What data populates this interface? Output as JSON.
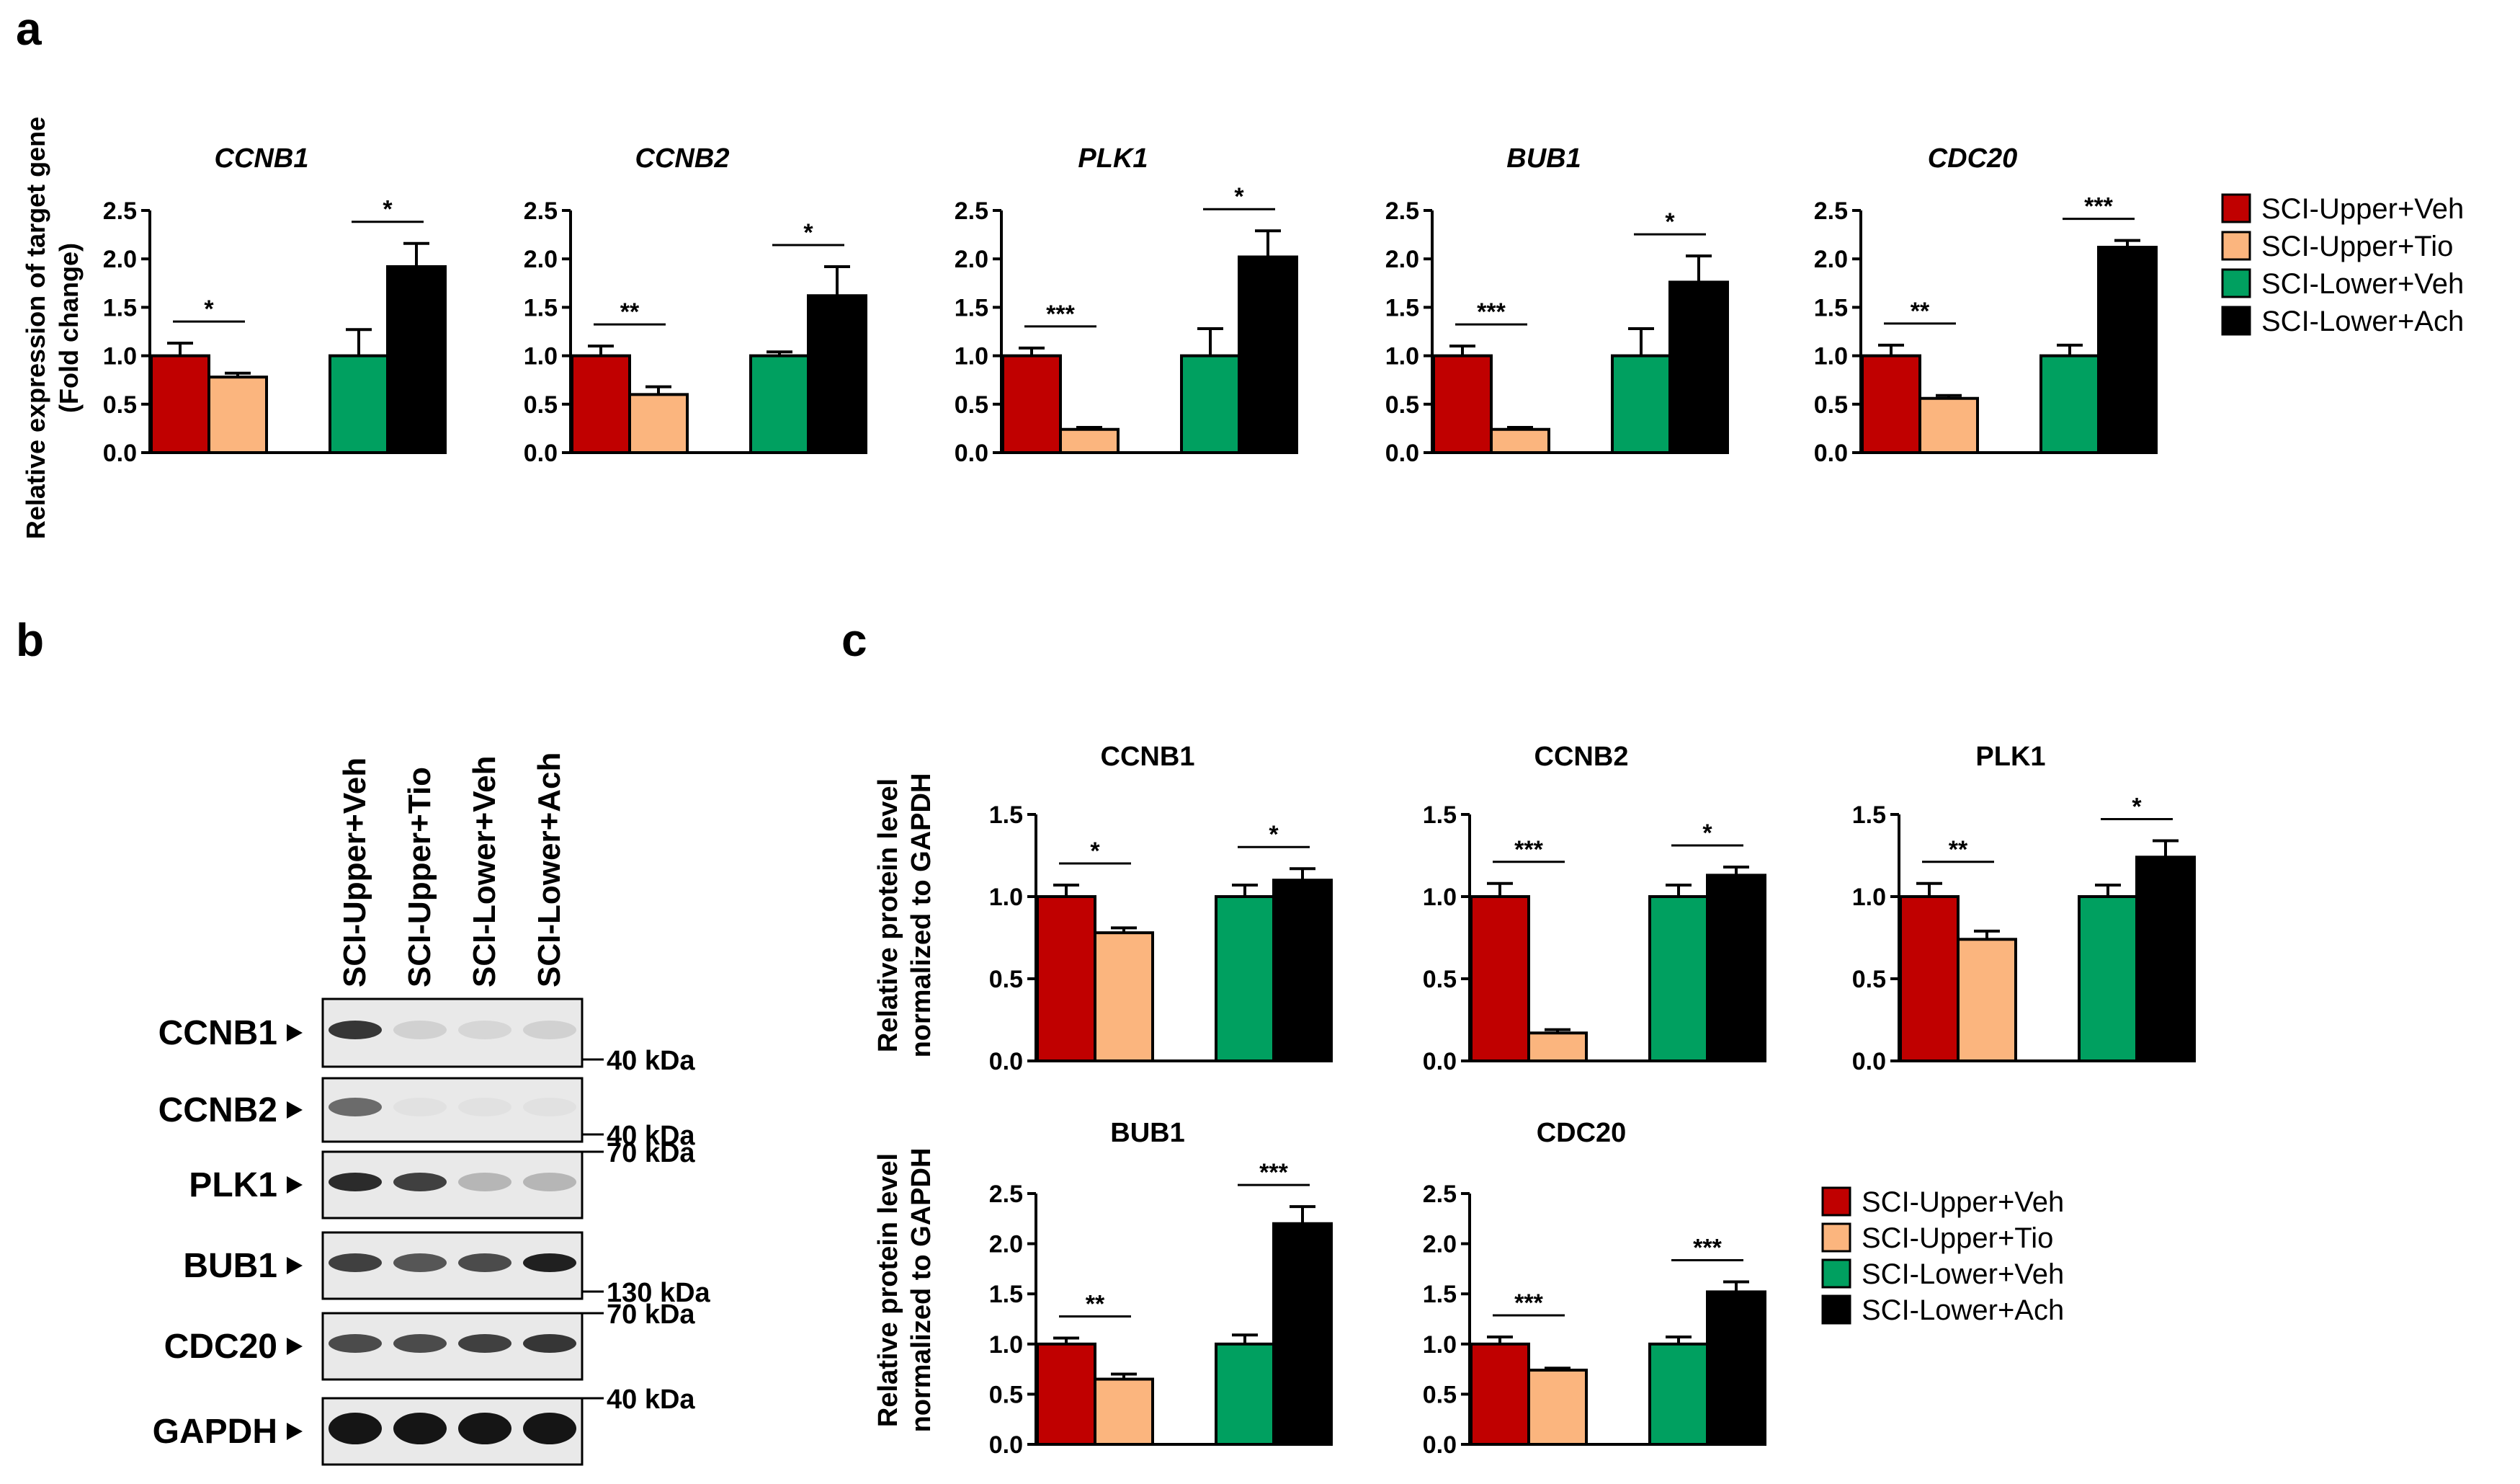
{
  "panel_labels": {
    "a": "a",
    "b": "b",
    "c": "c"
  },
  "colors": {
    "upper_veh": "#c00000",
    "upper_tio": "#fbb57e",
    "lower_veh": "#00a060",
    "lower_ach": "#000000",
    "axis": "#000000"
  },
  "legend": {
    "entries": [
      "SCI-Upper+Veh",
      "SCI-Upper+Tio",
      "SCI-Lower+Veh",
      "SCI-Lower+Ach"
    ]
  },
  "panel_a": {
    "ylabel_line1": "Relative expression of target gene",
    "ylabel_line2": "(Fold change)"
  },
  "panel_c": {
    "ylabel_line1": "Relative protein level",
    "ylabel_line2": "normalized to GAPDH"
  },
  "blot": {
    "lanes": [
      "SCI-Upper+Veh",
      "SCI-Upper+Tio",
      "SCI-Lower+Veh",
      "SCI-Lower+Ach"
    ],
    "rows": [
      {
        "label": "CCNB1",
        "markers": [
          {
            "text": "40 kDa",
            "pos": "bottom"
          }
        ],
        "intensity": [
          0.85,
          0.12,
          0.1,
          0.12
        ]
      },
      {
        "label": "CCNB2",
        "markers": [
          {
            "text": "40 kDa",
            "pos": "bottom"
          }
        ],
        "intensity": [
          0.6,
          0.05,
          0.05,
          0.05
        ]
      },
      {
        "label": "PLK1",
        "markers": [
          {
            "text": "70 kDa",
            "pos": "top"
          }
        ],
        "intensity": [
          0.9,
          0.8,
          0.25,
          0.25
        ]
      },
      {
        "label": "BUB1",
        "markers": [
          {
            "text": "130 kDa",
            "pos": "bottom"
          }
        ],
        "intensity": [
          0.8,
          0.7,
          0.75,
          0.95
        ]
      },
      {
        "label": "CDC20",
        "markers": [
          {
            "text": "70 kDa",
            "pos": "top"
          }
        ],
        "intensity": [
          0.75,
          0.75,
          0.8,
          0.85
        ]
      },
      {
        "label": "GAPDH",
        "markers": [
          {
            "text": "40 kDa",
            "pos": "top"
          }
        ],
        "intensity": [
          1.0,
          1.0,
          1.0,
          1.0
        ]
      }
    ]
  },
  "chart_data": [
    {
      "panel": "a",
      "type": "bar",
      "title": "CCNB1",
      "title_italic": true,
      "categories": [
        "SCI-Upper+Veh",
        "SCI-Upper+Tio",
        "SCI-Lower+Veh",
        "SCI-Lower+Ach"
      ],
      "values": [
        1.0,
        0.78,
        1.0,
        1.92
      ],
      "errors": [
        0.13,
        0.04,
        0.27,
        0.24
      ],
      "ylim": [
        0,
        2.5
      ],
      "yticks": [
        "0.0",
        "0.5",
        "1.0",
        "1.5",
        "2.0",
        "2.5"
      ],
      "xlabel": "",
      "ylabel": "Relative expression of target gene (Fold change)",
      "significance": [
        "*",
        "*"
      ]
    },
    {
      "panel": "a",
      "type": "bar",
      "title": "CCNB2",
      "title_italic": true,
      "categories": [
        "SCI-Upper+Veh",
        "SCI-Upper+Tio",
        "SCI-Lower+Veh",
        "SCI-Lower+Ach"
      ],
      "values": [
        1.0,
        0.6,
        1.0,
        1.62
      ],
      "errors": [
        0.1,
        0.08,
        0.04,
        0.3
      ],
      "ylim": [
        0,
        2.5
      ],
      "yticks": [
        "0.0",
        "0.5",
        "1.0",
        "1.5",
        "2.0",
        "2.5"
      ],
      "xlabel": "",
      "ylabel": "",
      "significance": [
        "**",
        "*"
      ]
    },
    {
      "panel": "a",
      "type": "bar",
      "title": "PLK1",
      "title_italic": true,
      "categories": [
        "SCI-Upper+Veh",
        "SCI-Upper+Tio",
        "SCI-Lower+Veh",
        "SCI-Lower+Ach"
      ],
      "values": [
        1.0,
        0.24,
        1.0,
        2.02
      ],
      "errors": [
        0.08,
        0.02,
        0.28,
        0.27
      ],
      "ylim": [
        0,
        2.5
      ],
      "yticks": [
        "0.0",
        "0.5",
        "1.0",
        "1.5",
        "2.0",
        "2.5"
      ],
      "xlabel": "",
      "ylabel": "",
      "significance": [
        "***",
        "*"
      ]
    },
    {
      "panel": "a",
      "type": "bar",
      "title": "BUB1",
      "title_italic": true,
      "categories": [
        "SCI-Upper+Veh",
        "SCI-Upper+Tio",
        "SCI-Lower+Veh",
        "SCI-Lower+Ach"
      ],
      "values": [
        1.0,
        0.24,
        1.0,
        1.76
      ],
      "errors": [
        0.1,
        0.02,
        0.28,
        0.27
      ],
      "ylim": [
        0,
        2.5
      ],
      "yticks": [
        "0.0",
        "0.5",
        "1.0",
        "1.5",
        "2.0",
        "2.5"
      ],
      "xlabel": "",
      "ylabel": "",
      "significance": [
        "***",
        "*"
      ]
    },
    {
      "panel": "a",
      "type": "bar",
      "title": "CDC20",
      "title_italic": true,
      "categories": [
        "SCI-Upper+Veh",
        "SCI-Upper+Tio",
        "SCI-Lower+Veh",
        "SCI-Lower+Ach"
      ],
      "values": [
        1.0,
        0.56,
        1.0,
        2.12
      ],
      "errors": [
        0.11,
        0.03,
        0.11,
        0.07
      ],
      "ylim": [
        0,
        2.5
      ],
      "yticks": [
        "0.0",
        "0.5",
        "1.0",
        "1.5",
        "2.0",
        "2.5"
      ],
      "xlabel": "",
      "ylabel": "",
      "significance": [
        "**",
        "***"
      ]
    },
    {
      "panel": "c",
      "type": "bar",
      "title": "CCNB1",
      "title_italic": false,
      "categories": [
        "SCI-Upper+Veh",
        "SCI-Upper+Tio",
        "SCI-Lower+Veh",
        "SCI-Lower+Ach"
      ],
      "values": [
        1.0,
        0.78,
        1.0,
        1.1
      ],
      "errors": [
        0.07,
        0.03,
        0.07,
        0.07
      ],
      "ylim": [
        0,
        1.5
      ],
      "yticks": [
        "0.0",
        "0.5",
        "1.0",
        "1.5"
      ],
      "xlabel": "",
      "ylabel": "Relative protein level normalized to GAPDH",
      "significance": [
        "*",
        "*"
      ]
    },
    {
      "panel": "c",
      "type": "bar",
      "title": "CCNB2",
      "title_italic": false,
      "categories": [
        "SCI-Upper+Veh",
        "SCI-Upper+Tio",
        "SCI-Lower+Veh",
        "SCI-Lower+Ach"
      ],
      "values": [
        1.0,
        0.17,
        1.0,
        1.13
      ],
      "errors": [
        0.08,
        0.02,
        0.07,
        0.05
      ],
      "ylim": [
        0,
        1.5
      ],
      "yticks": [
        "0.0",
        "0.5",
        "1.0",
        "1.5"
      ],
      "xlabel": "",
      "ylabel": "",
      "significance": [
        "***",
        "*"
      ]
    },
    {
      "panel": "c",
      "type": "bar",
      "title": "PLK1",
      "title_italic": false,
      "categories": [
        "SCI-Upper+Veh",
        "SCI-Upper+Tio",
        "SCI-Lower+Veh",
        "SCI-Lower+Ach"
      ],
      "values": [
        1.0,
        0.74,
        1.0,
        1.24
      ],
      "errors": [
        0.08,
        0.05,
        0.07,
        0.1
      ],
      "ylim": [
        0,
        1.5
      ],
      "yticks": [
        "0.0",
        "0.5",
        "1.0",
        "1.5"
      ],
      "xlabel": "",
      "ylabel": "",
      "significance": [
        "**",
        "*"
      ]
    },
    {
      "panel": "c",
      "type": "bar",
      "title": "BUB1",
      "title_italic": false,
      "categories": [
        "SCI-Upper+Veh",
        "SCI-Upper+Tio",
        "SCI-Lower+Veh",
        "SCI-Lower+Ach"
      ],
      "values": [
        1.0,
        0.65,
        1.0,
        2.2
      ],
      "errors": [
        0.06,
        0.05,
        0.09,
        0.17
      ],
      "ylim": [
        0,
        2.5
      ],
      "yticks": [
        "0.0",
        "0.5",
        "1.0",
        "1.5",
        "2.0",
        "2.5"
      ],
      "xlabel": "",
      "ylabel": "Relative protein level normalized to GAPDH",
      "significance": [
        "**",
        "***"
      ]
    },
    {
      "panel": "c",
      "type": "bar",
      "title": "CDC20",
      "title_italic": false,
      "categories": [
        "SCI-Upper+Veh",
        "SCI-Upper+Tio",
        "SCI-Lower+Veh",
        "SCI-Lower+Ach"
      ],
      "values": [
        1.0,
        0.74,
        1.0,
        1.52
      ],
      "errors": [
        0.07,
        0.02,
        0.07,
        0.1
      ],
      "ylim": [
        0,
        2.5
      ],
      "yticks": [
        "0.0",
        "0.5",
        "1.0",
        "1.5",
        "2.0",
        "2.5"
      ],
      "xlabel": "",
      "ylabel": "",
      "significance": [
        "***",
        "***"
      ]
    }
  ]
}
